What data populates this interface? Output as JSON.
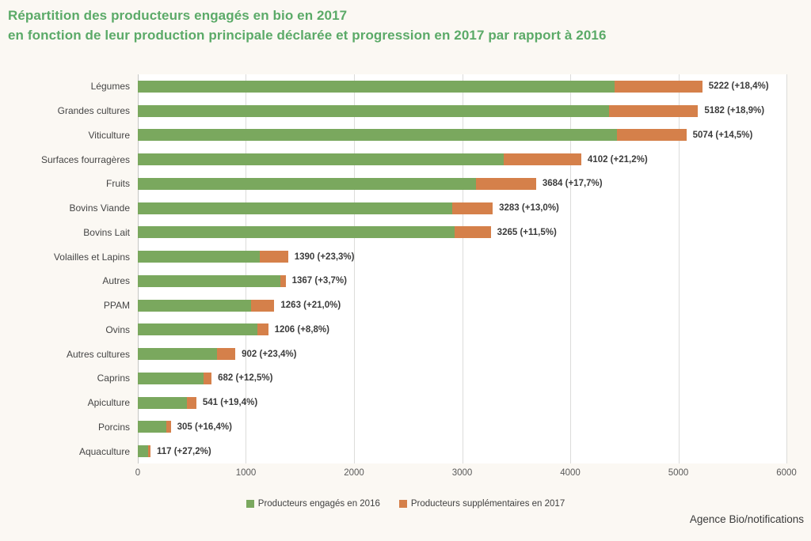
{
  "title": {
    "line1": "Répartition des producteurs engagés en bio en 2017",
    "line2": "en fonction de leur production principale déclarée et progression en 2017 par rapport à 2016"
  },
  "source": "Agence Bio/notifications",
  "colors": {
    "title_green": "#5BAA68",
    "bar_green": "#7AA85E",
    "bar_orange": "#D5804A",
    "plot_background": "#FFFFFF",
    "page_background": "#FBF8F3",
    "gridline": "#DCDCDA",
    "axis_line": "#C6C6C4",
    "label_dark": "#3B3B3B",
    "tick_gray": "#595959"
  },
  "legend": {
    "items": [
      {
        "label": "Producteurs engagés en 2016",
        "color": "#7AA85E"
      },
      {
        "label": "Producteurs supplémentaires en 2017",
        "color": "#D5804A"
      }
    ]
  },
  "chart_data": {
    "type": "bar",
    "orientation": "horizontal",
    "stacked": true,
    "title": "Répartition des producteurs engagés en bio en 2017 en fonction de leur production principale déclarée et progression en 2017 par rapport à 2016",
    "categories": [
      "Légumes",
      "Grandes cultures",
      "Viticulture",
      "Surfaces fourragères",
      "Fruits",
      "Bovins Viande",
      "Bovins Lait",
      "Volailles et Lapins",
      "Autres",
      "PPAM",
      "Ovins",
      "Autres cultures",
      "Caprins",
      "Apiculture",
      "Porcins",
      "Aquaculture"
    ],
    "series": [
      {
        "name": "Producteurs engagés en 2016",
        "color": "#7AA85E",
        "values": [
          4411,
          4358,
          4431,
          3384,
          3130,
          2905,
          2928,
          1127,
          1318,
          1044,
          1108,
          731,
          606,
          453,
          262,
          92
        ]
      },
      {
        "name": "Producteurs supplémentaires en 2017",
        "color": "#D5804A",
        "values": [
          811,
          824,
          643,
          718,
          554,
          378,
          337,
          263,
          49,
          219,
          98,
          171,
          76,
          88,
          43,
          25
        ]
      }
    ],
    "totals_2017": [
      5222,
      5182,
      5074,
      4102,
      3684,
      3283,
      3265,
      1390,
      1367,
      1263,
      1206,
      902,
      682,
      541,
      305,
      117
    ],
    "growth_pct_vs_2016": [
      18.4,
      18.9,
      14.5,
      21.2,
      17.7,
      13.0,
      11.5,
      23.3,
      3.7,
      21.0,
      8.8,
      23.4,
      12.5,
      19.4,
      16.4,
      27.2
    ],
    "value_labels": [
      "5222 (+18,4%)",
      "5182 (+18,9%)",
      "5074 (+14,5%)",
      "4102 (+21,2%)",
      "3684 (+17,7%)",
      "3283 (+13,0%)",
      "3265 (+11,5%)",
      "1390 (+23,3%)",
      "1367 (+3,7%)",
      "1263 (+21,0%)",
      "1206 (+8,8%)",
      "902 (+23,4%)",
      "682 (+12,5%)",
      "541 (+19,4%)",
      "305 (+16,4%)",
      "117 (+27,2%)"
    ],
    "xlim": [
      0,
      6000
    ],
    "x_ticks": [
      0,
      1000,
      2000,
      3000,
      4000,
      5000,
      6000
    ],
    "grid": "vertical",
    "legend_position": "bottom"
  }
}
